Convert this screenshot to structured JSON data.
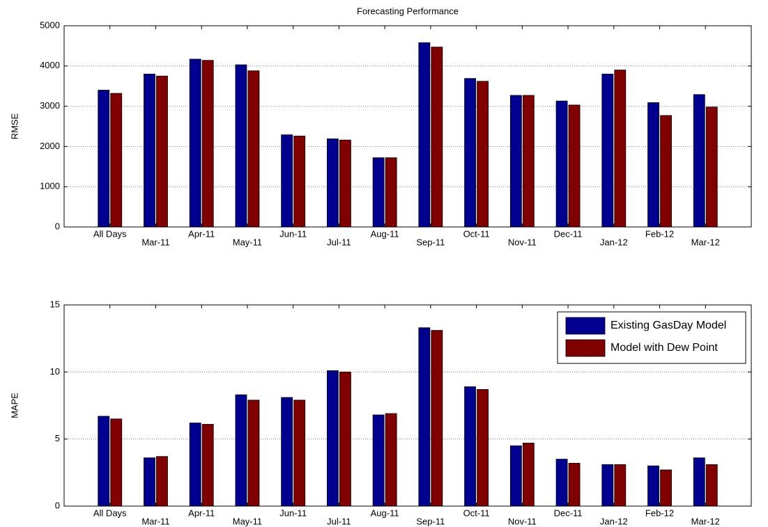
{
  "chart_data": [
    {
      "type": "bar",
      "title": "Forecasting Performance",
      "ylabel": "RMSE",
      "categories": [
        "All Days",
        "Mar-11",
        "Apr-11",
        "May-11",
        "Jun-11",
        "Jul-11",
        "Aug-11",
        "Sep-11",
        "Oct-11",
        "Nov-11",
        "Dec-11",
        "Jan-12",
        "Feb-12",
        "Mar-12"
      ],
      "series": [
        {
          "color": "#000090",
          "values": [
            3400,
            3800,
            4170,
            4030,
            2290,
            2190,
            1720,
            4580,
            3690,
            3270,
            3130,
            3800,
            3090,
            3290
          ]
        },
        {
          "color": "#800000",
          "values": [
            3320,
            3750,
            4140,
            3880,
            2260,
            2160,
            1720,
            4470,
            3620,
            3270,
            3030,
            3900,
            2770,
            2980
          ]
        }
      ],
      "ylim": [
        0,
        5000
      ],
      "yticks": [
        0,
        1000,
        2000,
        3000,
        4000,
        5000
      ],
      "grid": true
    },
    {
      "type": "bar",
      "ylabel": "MAPE",
      "categories": [
        "All Days",
        "Mar-11",
        "Apr-11",
        "May-11",
        "Jun-11",
        "Jul-11",
        "Aug-11",
        "Sep-11",
        "Oct-11",
        "Nov-11",
        "Dec-11",
        "Jan-12",
        "Feb-12",
        "Mar-12"
      ],
      "series": [
        {
          "name": "Existing GasDay Model",
          "color": "#000090",
          "values": [
            6.7,
            3.6,
            6.2,
            8.3,
            8.1,
            10.1,
            6.8,
            13.3,
            8.9,
            4.5,
            3.5,
            3.1,
            3.0,
            3.6
          ]
        },
        {
          "name": "Model with Dew Point",
          "color": "#800000",
          "values": [
            6.5,
            3.7,
            6.1,
            7.9,
            7.9,
            10.0,
            6.9,
            13.1,
            8.7,
            4.7,
            3.2,
            3.1,
            2.7,
            3.1
          ]
        }
      ],
      "ylim": [
        0,
        15
      ],
      "yticks": [
        0,
        5,
        10,
        15
      ],
      "grid": true,
      "legend": "upper right"
    }
  ]
}
